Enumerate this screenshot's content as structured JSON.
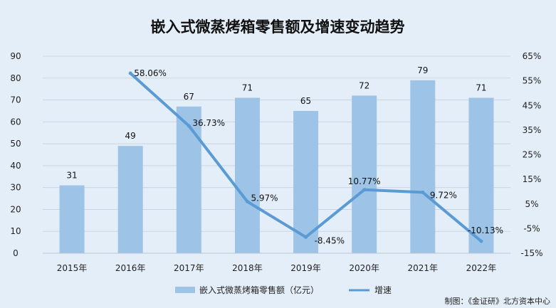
{
  "chart_data": {
    "type": "bar",
    "title": "嵌入式微蒸烤箱零售额及增速变动趋势",
    "categories": [
      "2015年",
      "2016年",
      "2017年",
      "2018年",
      "2019年",
      "2020年",
      "2021年",
      "2022年"
    ],
    "series": [
      {
        "name": "嵌入式微蒸烤箱零售额（亿元）",
        "type": "bar",
        "axis": "left",
        "values": [
          31,
          49,
          67,
          71,
          65,
          72,
          79,
          71
        ],
        "labels": [
          "31",
          "49",
          "67",
          "71",
          "65",
          "72",
          "79",
          "71"
        ],
        "color": "#9dc3e6"
      },
      {
        "name": "增速",
        "type": "line",
        "axis": "right",
        "values": [
          null,
          58.06,
          36.73,
          5.97,
          -8.45,
          10.77,
          9.72,
          -10.13
        ],
        "labels": [
          "",
          "58.06%",
          "36.73%",
          "5.97%",
          "-8.45%",
          "10.77%",
          "9.72%",
          "-10.13%"
        ],
        "color": "#5b9bd5"
      }
    ],
    "y_left": {
      "ylim": [
        0,
        90
      ],
      "ticks": [
        "0",
        "10",
        "20",
        "30",
        "40",
        "50",
        "60",
        "70",
        "80",
        "90"
      ]
    },
    "y_right": {
      "ylim": [
        -15,
        65
      ],
      "ticks": [
        "-15%",
        "-5%",
        "5%",
        "15%",
        "25%",
        "35%",
        "45%",
        "55%",
        "65%"
      ]
    },
    "grid": true,
    "legend_position": "bottom-center"
  },
  "source_note": "制图：《金证研》北方资本中心",
  "colors": {
    "background": "#e4eef8",
    "grid": "#c9d5e0",
    "bar": "#9dc3e6",
    "line": "#5b9bd5"
  }
}
